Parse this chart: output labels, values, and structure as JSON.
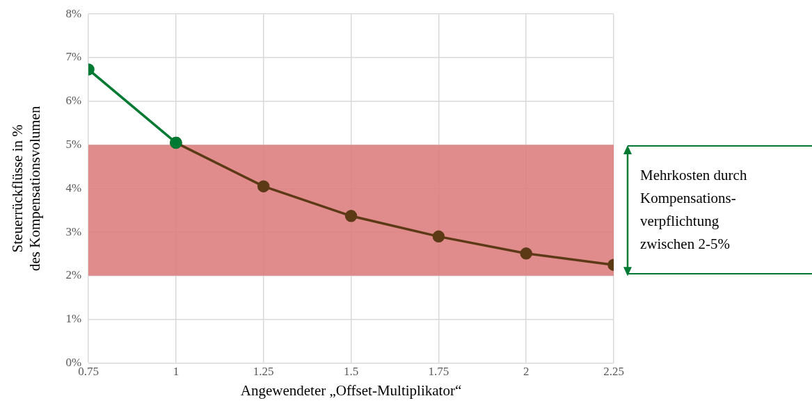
{
  "chart_data": {
    "type": "line",
    "xlabel": "Angewendeter „Offset-Multiplikator“",
    "ylabel": "Steuerrückflüsse in %\ndes Kompensationsvolumen",
    "series": [
      {
        "color": "#007a33",
        "x": [
          0.75,
          1
        ],
        "values": [
          6.73,
          5.05
        ]
      },
      {
        "color": "#5c3a16",
        "x": [
          1,
          1.25,
          1.5,
          1.75,
          2,
          2.25
        ],
        "values": [
          5.05,
          4.05,
          3.37,
          2.9,
          2.51,
          2.25
        ]
      }
    ],
    "xlim": [
      0.75,
      2.25
    ],
    "xticks": [
      0.75,
      1,
      1.25,
      1.5,
      1.75,
      2,
      2.25
    ],
    "ylim": [
      0,
      8
    ],
    "yticks": [
      {
        "value": 0,
        "label": "0%"
      },
      {
        "value": 1,
        "label": "1%"
      },
      {
        "value": 2,
        "label": "2%"
      },
      {
        "value": 3,
        "label": "3%"
      },
      {
        "value": 4,
        "label": "4%"
      },
      {
        "value": 5,
        "label": "5%"
      },
      {
        "value": 6,
        "label": "6%"
      },
      {
        "value": 7,
        "label": "7%"
      },
      {
        "value": 8,
        "label": "8%"
      }
    ],
    "bands": [
      {
        "axis": "y",
        "from": 2,
        "to": 5,
        "color": "#dc7b7c",
        "label": "Mehrkosten durch\nKompensations-\nverpflichtung\nzwischen 2-5%"
      }
    ],
    "grid": true,
    "legend": false,
    "marker": "circle",
    "line_style": "solid"
  }
}
